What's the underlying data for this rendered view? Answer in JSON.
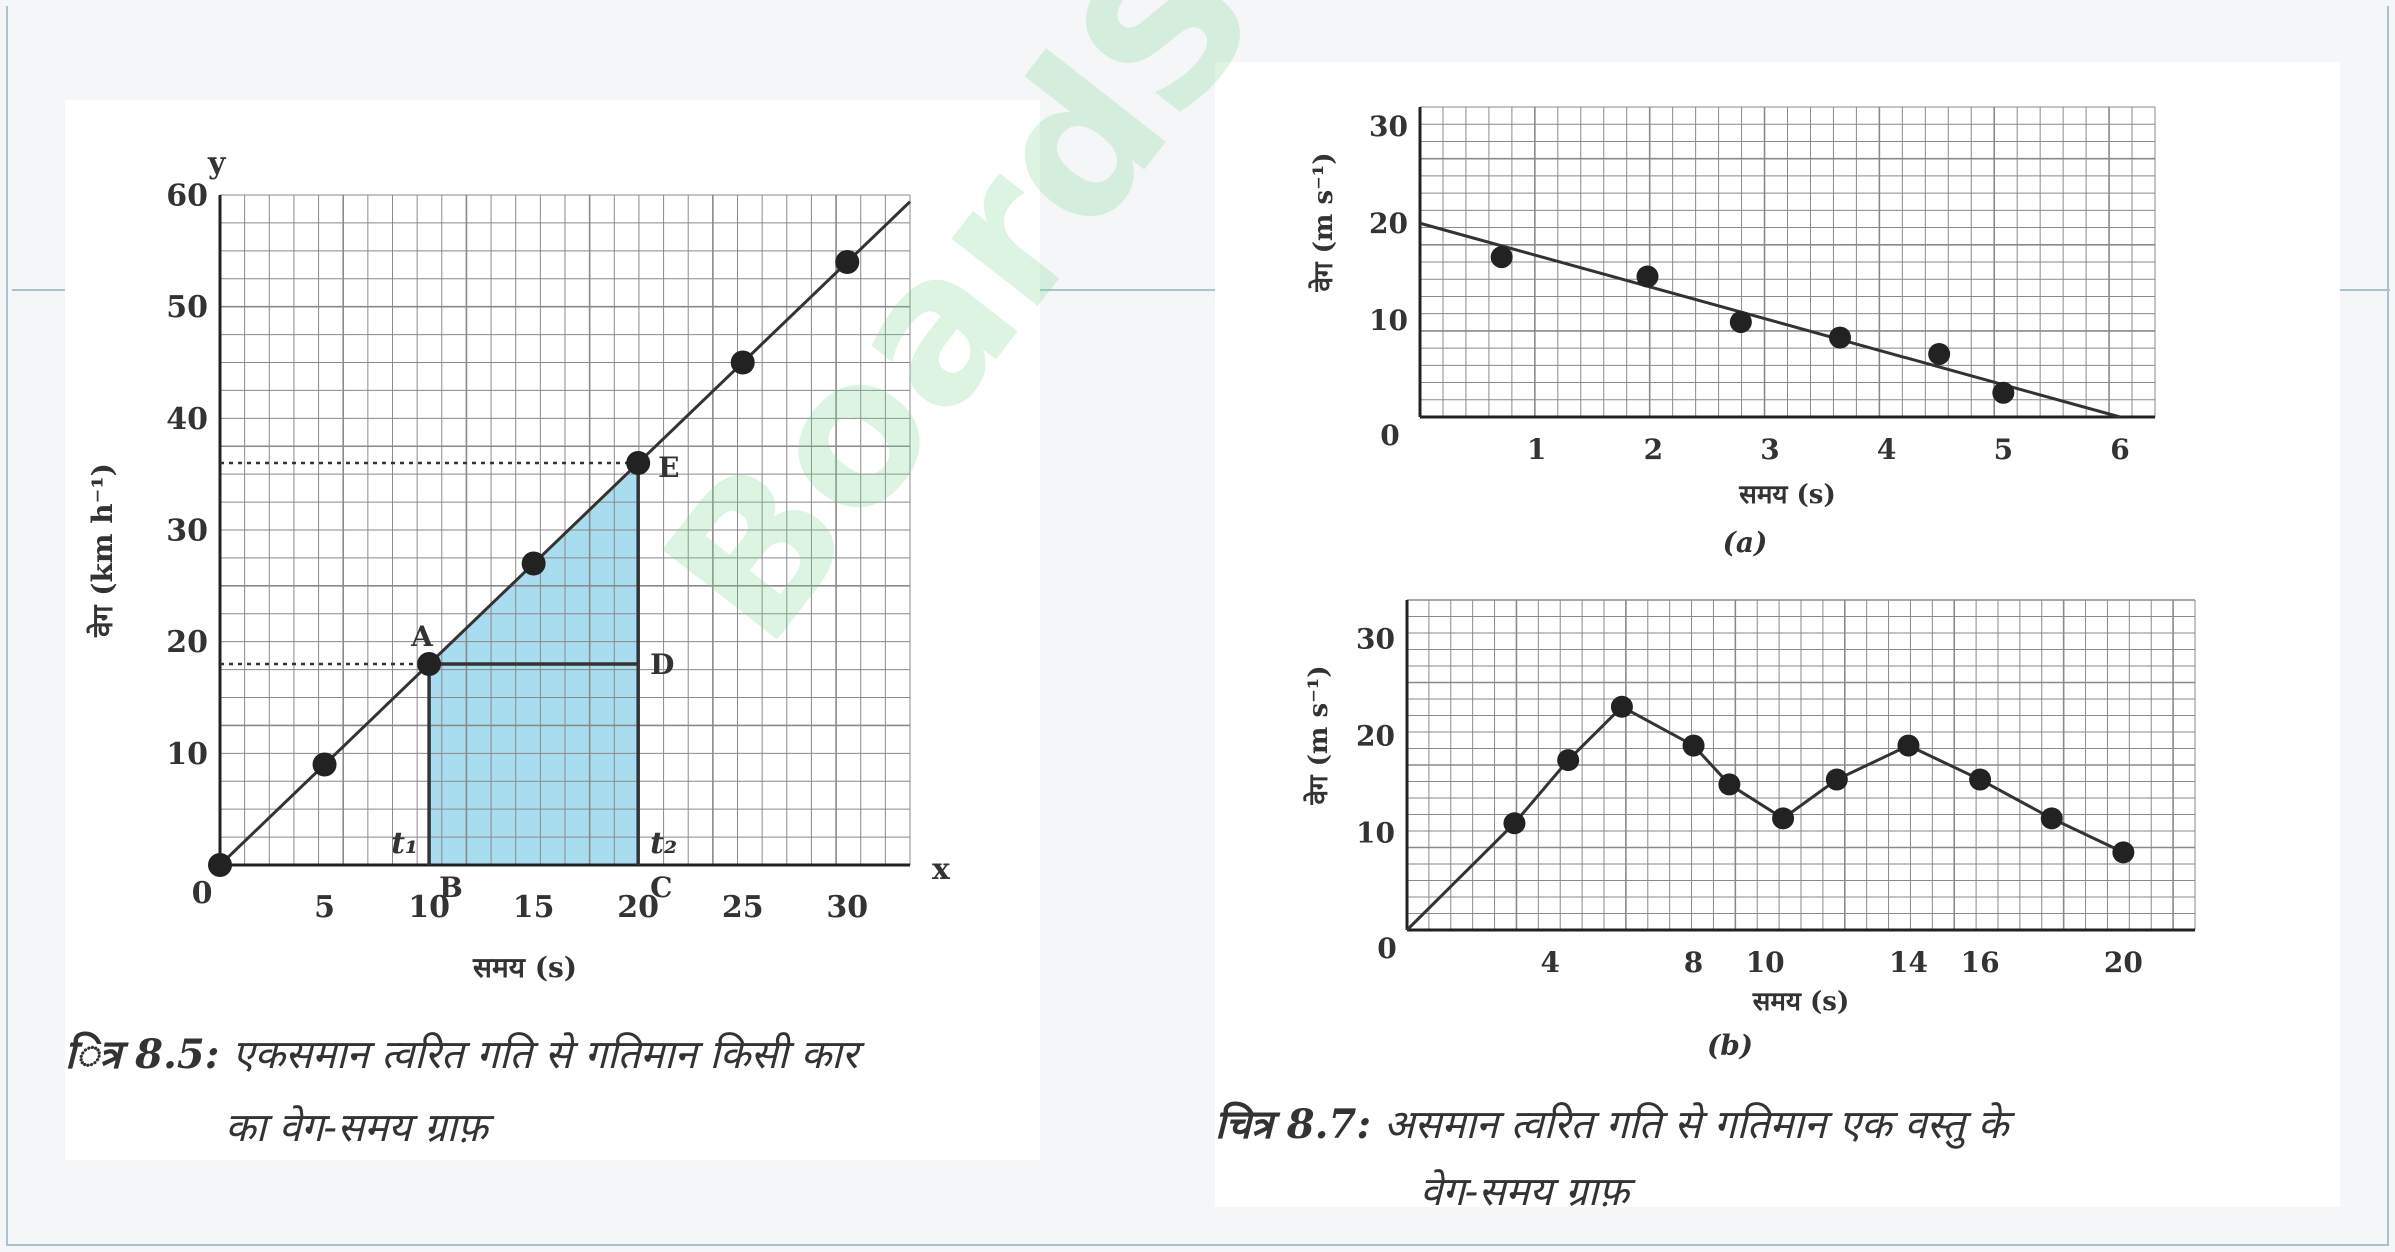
{
  "chart_data": [
    {
      "id": "fig85",
      "type": "line",
      "xlabel": "समय (s)",
      "ylabel": "वेग (km h⁻¹)",
      "x_axis_name": "x",
      "y_axis_name": "y",
      "xlim": [
        0,
        33
      ],
      "ylim": [
        0,
        60
      ],
      "xticks": [
        5,
        10,
        15,
        20,
        25,
        30
      ],
      "yticks": [
        10,
        20,
        30,
        40,
        50,
        60
      ],
      "origin_label": "0",
      "grid": true,
      "line": [
        [
          0,
          0
        ],
        [
          33,
          59.4
        ]
      ],
      "points": [
        [
          0,
          0
        ],
        [
          5,
          9
        ],
        [
          10,
          18
        ],
        [
          15,
          27
        ],
        [
          20,
          36
        ],
        [
          25,
          45
        ],
        [
          30,
          54
        ]
      ],
      "shaded_region": {
        "x_from": 10,
        "x_to": 20,
        "color": "#a8dcef"
      },
      "point_labels": {
        "A": "A",
        "B": "B",
        "C": "C",
        "D": "D",
        "E": "E",
        "t1": "t₁",
        "t2": "t₂"
      },
      "caption_label": "ित्र 8.5:",
      "caption_line1": "एकसमान त्वरित गति से गतिमान किसी कार",
      "caption_line2": "का वेग-समय ग्राफ़"
    },
    {
      "id": "fig87a",
      "type": "scatter",
      "xlabel": "समय (s)",
      "ylabel": "वेग (m s⁻¹)",
      "xlim": [
        0,
        6.3
      ],
      "ylim": [
        0,
        32
      ],
      "xticks": [
        1,
        2,
        3,
        4,
        5,
        6
      ],
      "yticks": [
        10,
        20,
        30
      ],
      "origin_label": "0",
      "grid": true,
      "line": [
        [
          0,
          20
        ],
        [
          6,
          0
        ]
      ],
      "points": [
        [
          0.7,
          16.5
        ],
        [
          1.95,
          14.5
        ],
        [
          2.75,
          9.8
        ],
        [
          3.6,
          8.2
        ],
        [
          4.45,
          6.5
        ],
        [
          5,
          2.5
        ]
      ],
      "sublabel": "(a)"
    },
    {
      "id": "fig87b",
      "type": "line",
      "xlabel": "समय (s)",
      "ylabel": "वेग (m s⁻¹)",
      "xlim": [
        0,
        22
      ],
      "ylim": [
        0,
        34
      ],
      "xticks": [
        4,
        8,
        10,
        14,
        16,
        20
      ],
      "yticks": [
        10,
        20,
        30
      ],
      "origin_label": "0",
      "grid": true,
      "points": [
        [
          0,
          0
        ],
        [
          3,
          11
        ],
        [
          4.5,
          17.5
        ],
        [
          6,
          23
        ],
        [
          8,
          19
        ],
        [
          9,
          15
        ],
        [
          10.5,
          11.5
        ],
        [
          12,
          15.5
        ],
        [
          14,
          19
        ],
        [
          16,
          15.5
        ],
        [
          18,
          11.5
        ],
        [
          20,
          8
        ]
      ],
      "sublabel": "(b)",
      "caption_label": "चित्र 8.7:",
      "caption_line1": "असमान त्वरित गति से गतिमान एक वस्तु के",
      "caption_line2": "वेग-समय ग्राफ़"
    }
  ],
  "watermark": "BoardStudy"
}
